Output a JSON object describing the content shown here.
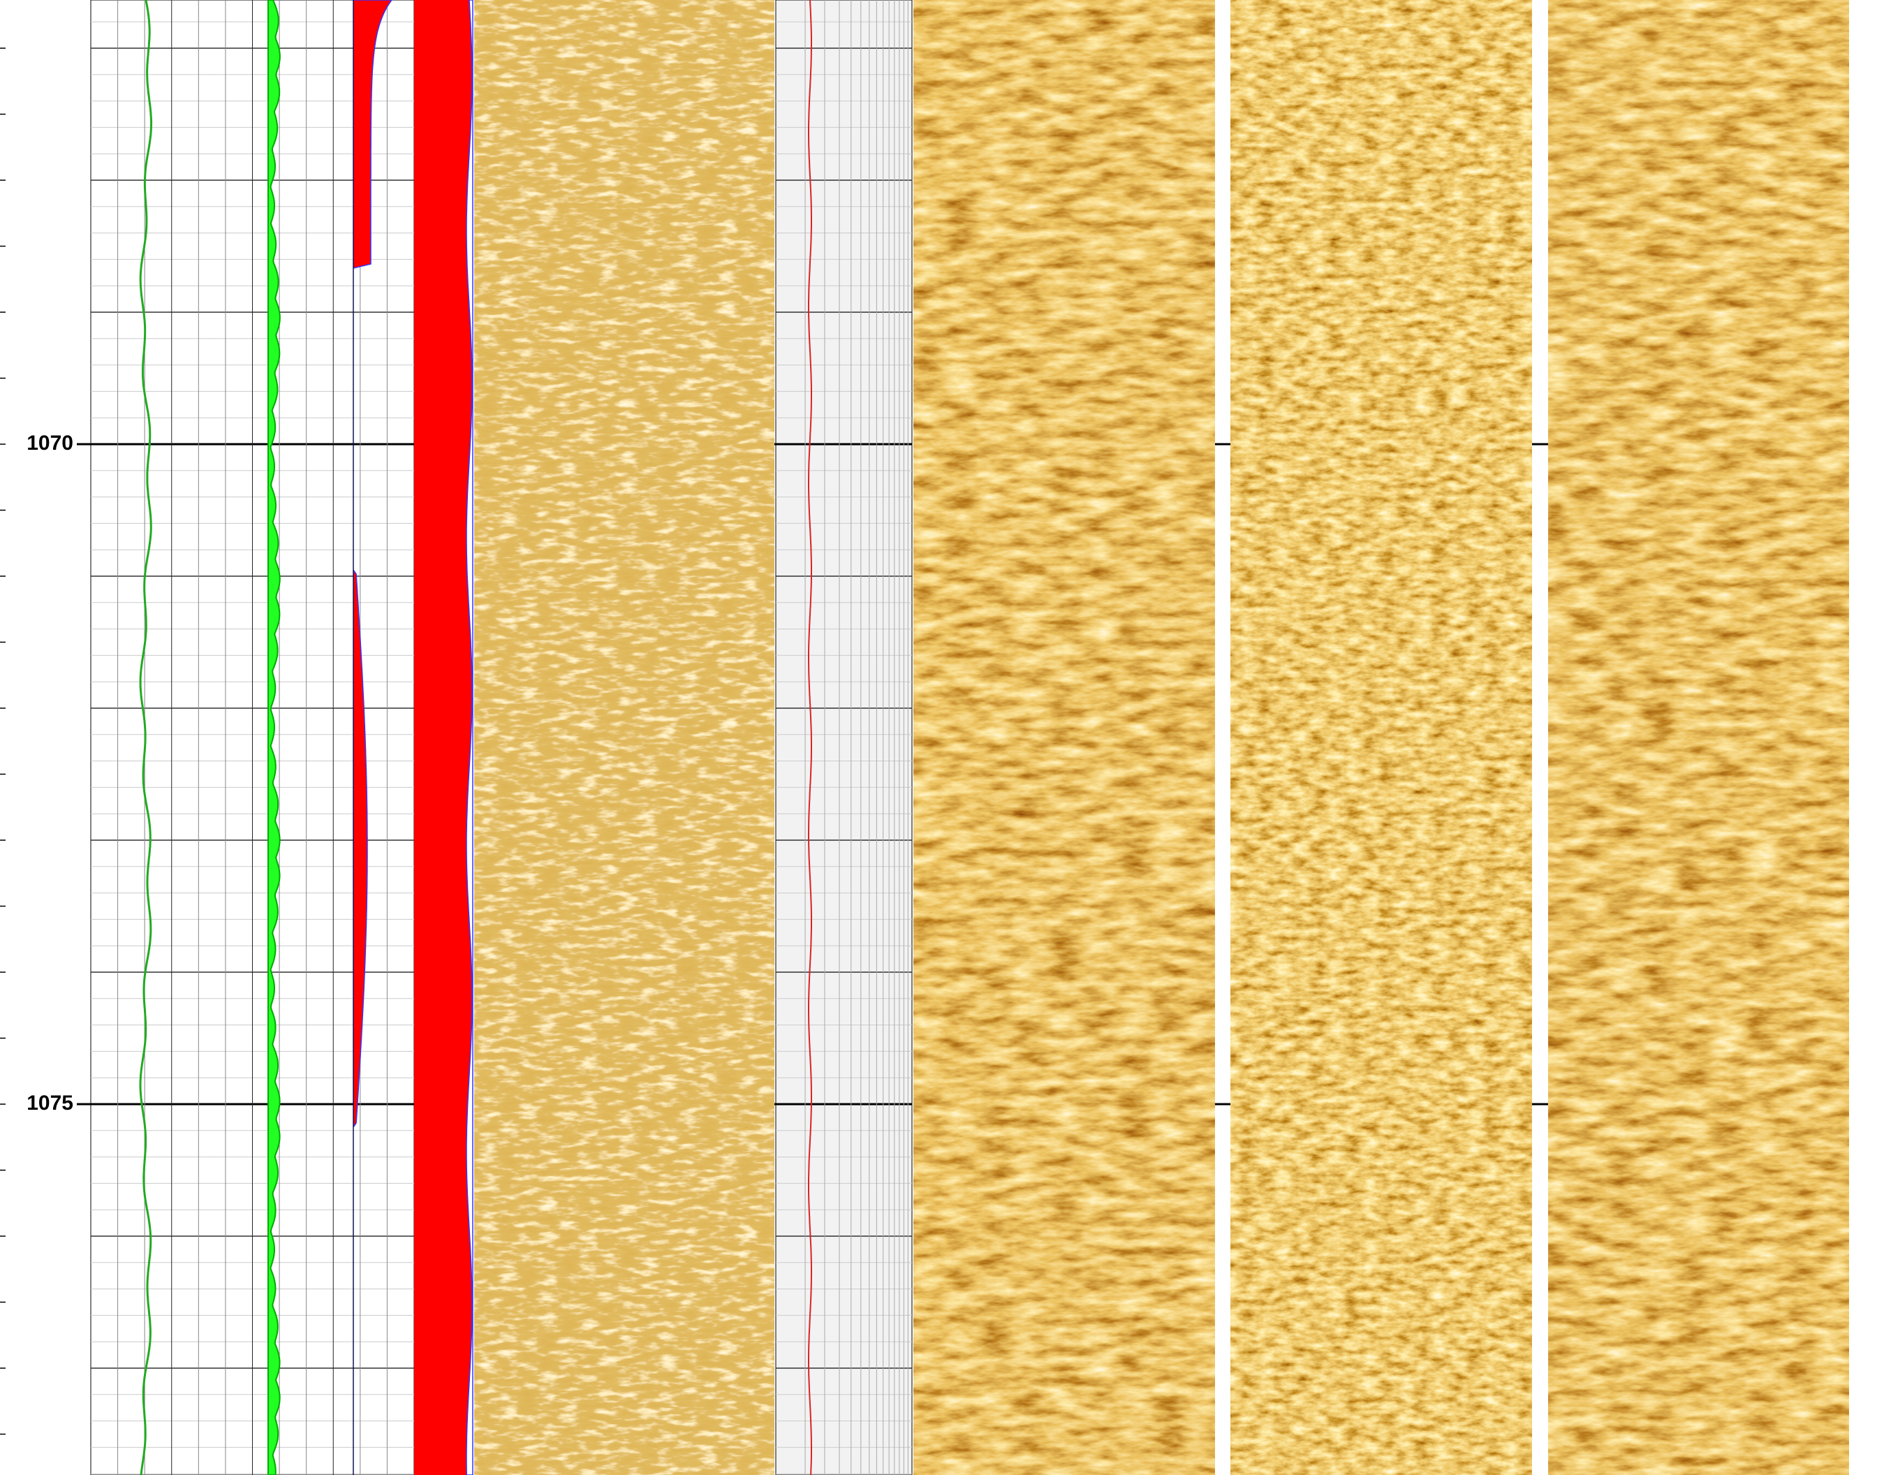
{
  "depth_track": {
    "labels": [
      1070,
      1075
    ]
  }
}
